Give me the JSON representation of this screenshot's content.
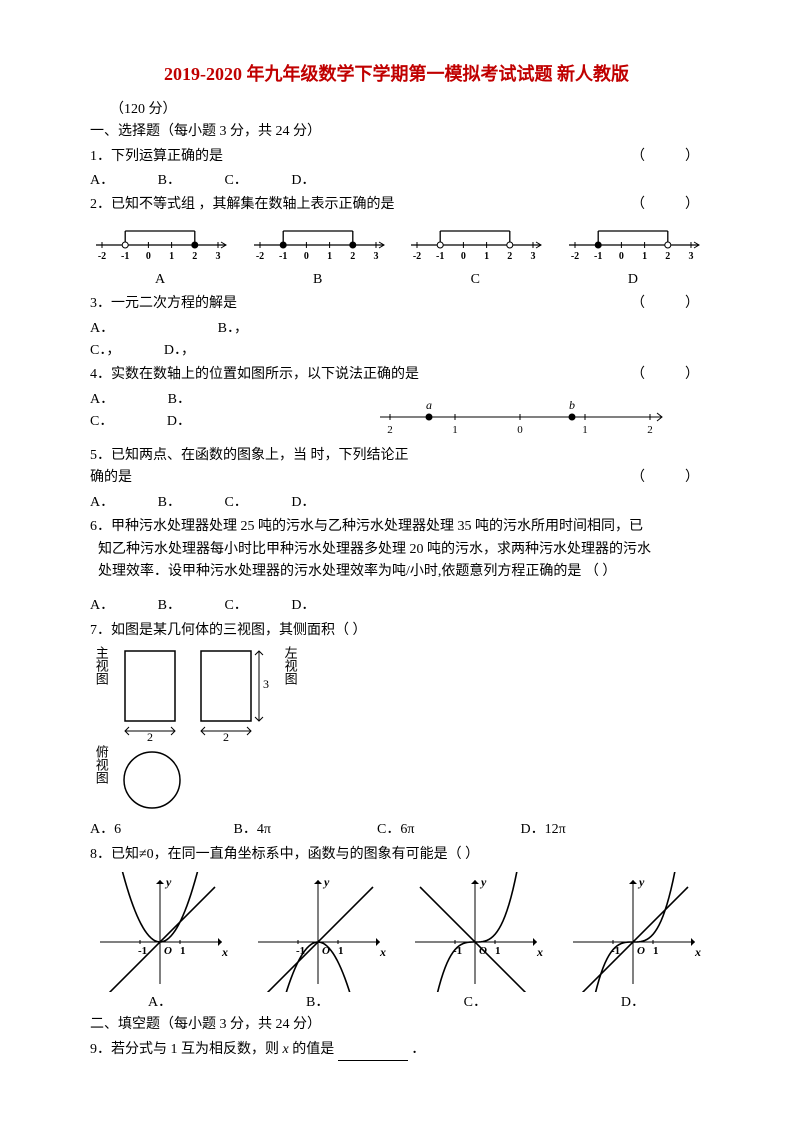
{
  "title": "2019-2020 年九年级数学下学期第一模拟考试试题 新人教版",
  "score": "（120 分）",
  "section1": "一、选择题（每小题 3 分，共 24 分）",
  "q1": {
    "text": "1．下列运算正确的是",
    "opts": [
      "A．",
      "B．",
      "C．",
      "D．"
    ]
  },
  "q2": {
    "text": "2．已知不等式组 ，其解集在数轴上表示正确的是",
    "lines": {
      "ticks": [
        -2,
        -1,
        0,
        1,
        2,
        3
      ],
      "variants": [
        {
          "label": "A",
          "start": -1,
          "end": 2,
          "openLeft": true,
          "openRight": false
        },
        {
          "label": "B",
          "start": -1,
          "end": 2,
          "openLeft": false,
          "openRight": false
        },
        {
          "label": "C",
          "start": -1,
          "end": 2,
          "openLeft": true,
          "openRight": true
        },
        {
          "label": "D",
          "start": -1,
          "end": 2,
          "openLeft": false,
          "openRight": true
        }
      ]
    }
  },
  "q3": {
    "text": "3．一元二次方程的解是",
    "optsRow1": [
      "A．",
      "B．，"
    ],
    "optsRow2": [
      "C．，",
      "D．，"
    ]
  },
  "q4": {
    "text": "4．实数在数轴上的位置如图所示，以下说法正确的是",
    "optsRow1": [
      "A．",
      "B．"
    ],
    "optsRow2": [
      "C．",
      "D．"
    ],
    "numberline": {
      "ticks": [
        -2,
        -1,
        0,
        1,
        2
      ],
      "a": -1.4,
      "b": 0.8,
      "aLabel": "a",
      "bLabel": "b"
    }
  },
  "q5": {
    "text1": "5．已知两点、在函数的图象上，当  时，下列结论正",
    "text2": "确的是",
    "opts": [
      "A．",
      "B．",
      "C．",
      "D．"
    ]
  },
  "q6": {
    "l1": "6．甲种污水处理器处理 25 吨的污水与乙种污水处理器处理 35 吨的污水所用时间相同，已",
    "l2": "知乙种污水处理器每小时比甲种污水处理器多处理 20 吨的污水，求两种污水处理器的污水",
    "l3": "处理效率．设甲种污水处理器的污水处理效率为吨/小时,依题意列方程正确的是 （   ）",
    "opts": [
      "A．",
      "B．",
      "C．",
      "D．"
    ]
  },
  "q7": {
    "text": "7．如图是某几何体的三视图，其侧面积（      ）",
    "labels": {
      "front": "主视图",
      "left": "左视图",
      "top": "俯视图",
      "dim2": "2",
      "dim3": "3"
    },
    "opts": [
      "A．6",
      "B．4π",
      "C．6π",
      "D．12π"
    ]
  },
  "q8": {
    "text": "8．已知≠0，在同一直角坐标系中，函数与的图象有可能是（      ）",
    "labels": [
      "A．",
      "B．",
      "C．",
      "D．"
    ],
    "axis": {
      "yLabel": "y",
      "xLabel": "x",
      "origin": "O",
      "neg1": "-1",
      "pos1": "1"
    }
  },
  "section2": "二、填空题（每小题 3 分，共 24 分）",
  "q9_a": "9．若分式与 1 互为相反数，则 ",
  "q9_x": "x",
  "q9_b": " 的值是",
  "q9_c": "．"
}
